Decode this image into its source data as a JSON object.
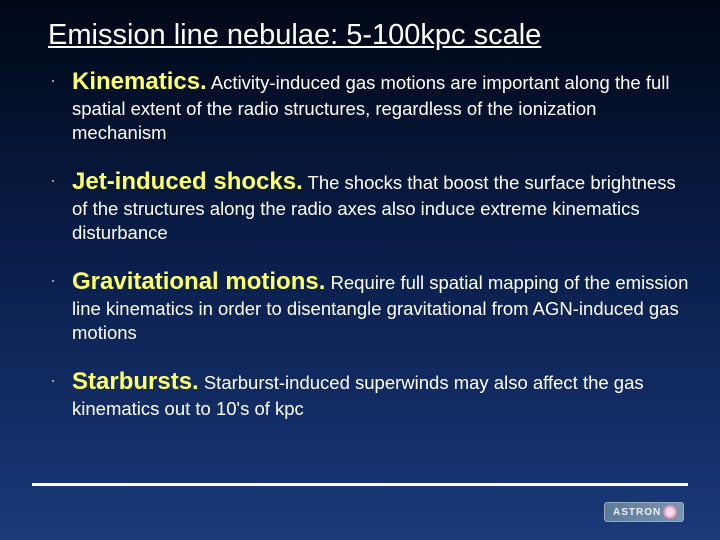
{
  "title": "Emission line nebulae: 5-100kpc scale",
  "title_fontsize": 29,
  "term_fontsize": 24,
  "body_fontsize": 18.5,
  "colors": {
    "background_top": "#000816",
    "background_bottom": "#1a3a7a",
    "title_color": "#ffffff",
    "term_color": "#ffff66",
    "body_color": "#ffffff",
    "rule_color": "#ffffff"
  },
  "items": [
    {
      "term": "Kinematics.",
      "body": " Activity-induced gas motions are important along the full spatial extent of the radio structures, regardless of the ionization mechanism"
    },
    {
      "term": "Jet-induced shocks.",
      "body": " The shocks that boost the surface brightness of the structures along the radio axes also induce extreme kinematics disturbance"
    },
    {
      "term": "Gravitational motions.",
      "body": " Require full spatial mapping of the emission line kinematics in order to disentangle gravitational from AGN-induced gas motions"
    },
    {
      "term": "Starbursts.",
      "body": " Starburst-induced superwinds may also affect the gas kinematics out to 10's of kpc"
    }
  ],
  "logo_text": "ASTRON"
}
